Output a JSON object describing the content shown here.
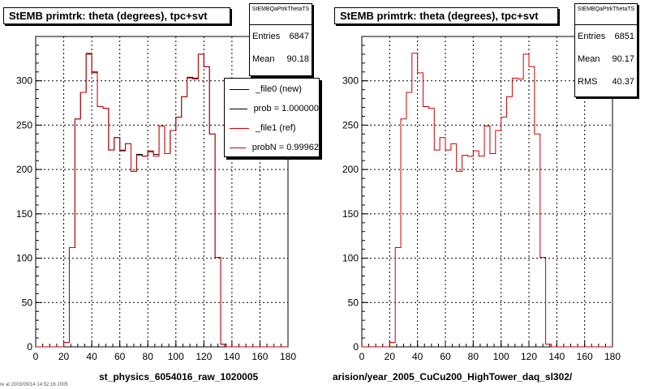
{
  "chart_data": [
    {
      "type": "histogram",
      "title": "StEMB primtrk: theta (degrees), tpc+svt",
      "xlabel": "st_physics_6054016_raw_1020005",
      "ylabel": "",
      "xlim": [
        0,
        180
      ],
      "ylim": [
        0,
        350
      ],
      "xticks": [
        0,
        20,
        40,
        60,
        80,
        100,
        120,
        140,
        160,
        180
      ],
      "yticks": [
        0,
        50,
        100,
        150,
        200,
        250,
        300
      ],
      "grid": true,
      "bin_edges_start": 0,
      "bin_width": 4,
      "series": [
        {
          "name": "_file0 (new)",
          "color": "#000000",
          "values": [
            0,
            0,
            0,
            0,
            0,
            5,
            112,
            257,
            287,
            330,
            310,
            271,
            269,
            222,
            236,
            221,
            229,
            198,
            217,
            215,
            220,
            217,
            249,
            218,
            244,
            259,
            282,
            304,
            303,
            330,
            316,
            240,
            101,
            3,
            0,
            0,
            0,
            0,
            0,
            0,
            0,
            0,
            0,
            0,
            0
          ]
        },
        {
          "name": "_file1 (ref)",
          "color": "#cc0000",
          "values": [
            0,
            0,
            0,
            0,
            0,
            5,
            112,
            257,
            287,
            331,
            309,
            271,
            269,
            222,
            236,
            222,
            229,
            198,
            216,
            215,
            221,
            215,
            249,
            218,
            244,
            259,
            282,
            303,
            302,
            330,
            316,
            240,
            101,
            3,
            0,
            0,
            0,
            0,
            0,
            0,
            0,
            0,
            0,
            0,
            0
          ]
        }
      ],
      "stats": {
        "header": "StEMBQaPtrkThetaTS",
        "entries_label": "Entries",
        "entries": "6847",
        "mean_label": "Mean",
        "mean": "90.18"
      },
      "legend": {
        "placement": "top-right",
        "items": [
          "_file0 (new)",
          "prob = 1.000000",
          "_file1 (ref)",
          "probN = 0.99962"
        ]
      }
    },
    {
      "type": "histogram",
      "title": "StEMB primtrk: theta (degrees), tpc+svt",
      "xlabel": "arision/year_2005_CuCu200_HighTower_daq_sl302/",
      "ylabel": "",
      "xlim": [
        0,
        180
      ],
      "ylim": [
        0,
        350
      ],
      "xticks": [
        0,
        20,
        40,
        60,
        80,
        100,
        120,
        140,
        160,
        180
      ],
      "yticks": [
        0,
        50,
        100,
        150,
        200,
        250,
        300
      ],
      "grid": true,
      "bin_edges_start": 0,
      "bin_width": 4,
      "series": [
        {
          "name": "ref",
          "color": "#cc0000",
          "values": [
            0,
            0,
            0,
            0,
            0,
            5,
            112,
            257,
            287,
            331,
            309,
            271,
            269,
            222,
            236,
            222,
            229,
            198,
            216,
            215,
            221,
            215,
            249,
            218,
            244,
            259,
            282,
            303,
            302,
            330,
            316,
            240,
            101,
            3,
            0,
            0,
            0,
            0,
            0,
            0,
            0,
            0,
            0,
            0,
            0
          ]
        }
      ],
      "stats": {
        "header": "StEMBQaPtrkThetaTS",
        "entries_label": "Entries",
        "entries": "6851",
        "mean_label": "Mean",
        "mean": "90.17",
        "rms_label": "RMS",
        "rms": "40.37"
      }
    }
  ],
  "footer": "re at 2003/09/14 14:52:16 2005"
}
